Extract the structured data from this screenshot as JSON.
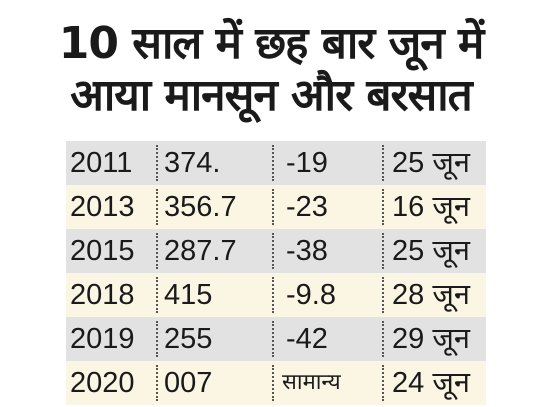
{
  "title": {
    "line1": "10 साल में छह बार जून में",
    "line2": "आया मानसून और बरसात"
  },
  "table": {
    "rows": [
      {
        "year": "2011",
        "rainfall": "374.",
        "deviation": "-19",
        "date": "25 जून"
      },
      {
        "year": "2013",
        "rainfall": "356.7",
        "deviation": "-23",
        "date": "16 जून"
      },
      {
        "year": "2015",
        "rainfall": "287.7",
        "deviation": "-38",
        "date": "25 जून"
      },
      {
        "year": "2018",
        "rainfall": "415",
        "deviation": "-9.8",
        "date": "28 जून"
      },
      {
        "year": "2019",
        "rainfall": "255",
        "deviation": "-42",
        "date": "29 जून"
      },
      {
        "year": "2020",
        "rainfall": "007",
        "deviation": "सामान्य",
        "date": "24 जून"
      }
    ]
  },
  "colors": {
    "row_gray": "#e2e2e2",
    "row_cream": "#fbf5e3",
    "text": "#1a1a1a"
  }
}
